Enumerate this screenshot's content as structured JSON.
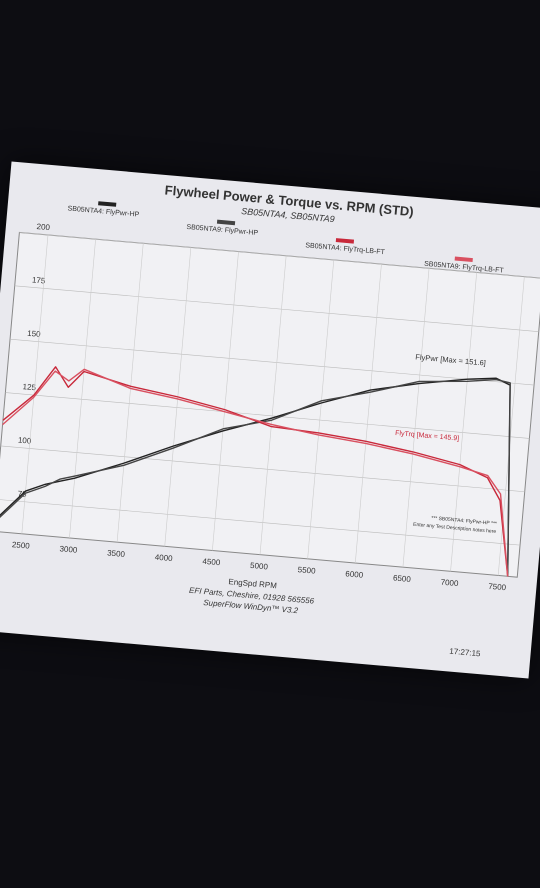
{
  "chart_data": {
    "type": "line",
    "title": "Flywheel Power & Torque vs. RPM (STD)",
    "subtitle": "SB05NTA4, SB05NTA9",
    "x_label": "EngSpd RPM",
    "x": [
      2200,
      2500,
      2700,
      2850,
      3000,
      3500,
      4000,
      4500,
      5000,
      5500,
      6000,
      6500,
      7000,
      7300,
      7450,
      7600
    ],
    "series": [
      {
        "name": "SB05NTA4: FlyPwr-HP",
        "color": "#222222",
        "values": [
          65,
          80,
          84,
          86,
          88,
          97,
          107,
          116,
          124,
          133,
          141,
          146,
          150,
          151.6,
          149,
          60
        ]
      },
      {
        "name": "SB05NTA9: FlyPwr-HP",
        "color": "#444444",
        "values": [
          64,
          79,
          83,
          87,
          89,
          96,
          106,
          117,
          123,
          134,
          140,
          147,
          149,
          151,
          150,
          60
        ]
      },
      {
        "name": "SB05NTA4: FlyTrq-LB-FT",
        "color": "#c8283a",
        "values": [
          112,
          125,
          139,
          130,
          138,
          133,
          130,
          126,
          120,
          119,
          117,
          114,
          110,
          105,
          95,
          60
        ]
      },
      {
        "name": "SB05NTA9: FlyTrq-LB-FT",
        "color": "#d95060",
        "values": [
          110,
          124,
          137,
          133,
          139,
          132,
          129,
          125,
          121,
          118,
          116,
          113,
          109,
          106,
          98,
          60
        ]
      }
    ],
    "xlim": [
      2200,
      7700
    ],
    "xticks": [
      2500,
      3000,
      3500,
      4000,
      4500,
      5000,
      5500,
      6000,
      6500,
      7000,
      7500
    ],
    "ylim": [
      60,
      200
    ],
    "yticks": [
      75,
      100,
      125,
      150,
      175,
      200
    ],
    "grid": true,
    "annotations": [
      "FlyPwr [Max = 151.6]",
      "FlyTrq [Max = 145.9]"
    ],
    "notes": [
      "*** SB05NTA4: FlyPwr-HP ***",
      "Enter any Test Description notes here"
    ],
    "footer": [
      "EFI Parts, Cheshire, 01928 565556",
      "SuperFlow WinDyn™ V3.2"
    ],
    "timestamp": "17:27:15"
  }
}
